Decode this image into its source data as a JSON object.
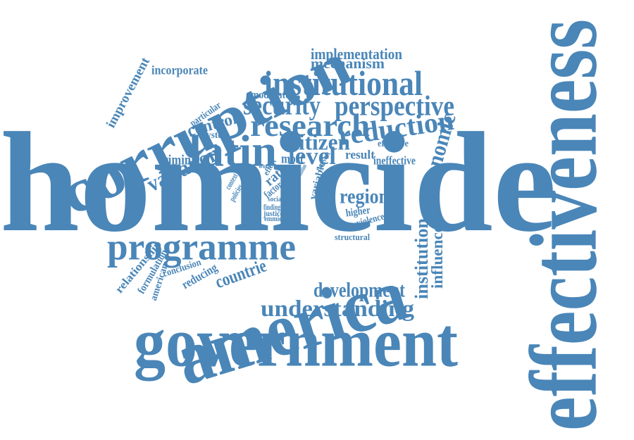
{
  "palette": {
    "word": "#4a86b8",
    "background": "#ffffff"
  },
  "words": [
    {
      "text": "homicide"
    },
    {
      "text": "effectiveness"
    },
    {
      "text": "corruption"
    },
    {
      "text": "government"
    },
    {
      "text": "america"
    },
    {
      "text": "programme"
    },
    {
      "text": "latin"
    },
    {
      "text": "institutional"
    },
    {
      "text": "research"
    },
    {
      "text": "perspective"
    },
    {
      "text": "reduction"
    },
    {
      "text": "security"
    },
    {
      "text": "citizen"
    },
    {
      "text": "level"
    },
    {
      "text": "region"
    },
    {
      "text": "economic"
    },
    {
      "text": "variation"
    },
    {
      "text": "understanding"
    },
    {
      "text": "development"
    },
    {
      "text": "countrie"
    },
    {
      "text": "institution"
    },
    {
      "text": "influence"
    },
    {
      "text": "control"
    },
    {
      "text": "implementation"
    },
    {
      "text": "mechanism"
    },
    {
      "text": "incorporate"
    },
    {
      "text": "improvement"
    },
    {
      "text": "moderator"
    },
    {
      "text": "particular"
    },
    {
      "text": "system"
    },
    {
      "text": "criminal"
    },
    {
      "text": "most"
    },
    {
      "text": "result"
    },
    {
      "text": "ineffective"
    },
    {
      "text": "effective"
    },
    {
      "text": "person"
    },
    {
      "text": "variable"
    },
    {
      "text": "rate"
    },
    {
      "text": "factor"
    },
    {
      "text": "effect"
    },
    {
      "text": "work"
    },
    {
      "text": "social"
    },
    {
      "text": "context"
    },
    {
      "text": "policies"
    },
    {
      "text": "finding"
    },
    {
      "text": "justice"
    },
    {
      "text": "emmie"
    },
    {
      "text": "higher"
    },
    {
      "text": "violence"
    },
    {
      "text": "structural"
    },
    {
      "text": "relationship"
    },
    {
      "text": "formulation"
    },
    {
      "text": "american"
    },
    {
      "text": "conclusion"
    },
    {
      "text": "reducing"
    },
    {
      "text": "crime"
    },
    {
      "text": "evaluation"
    }
  ]
}
